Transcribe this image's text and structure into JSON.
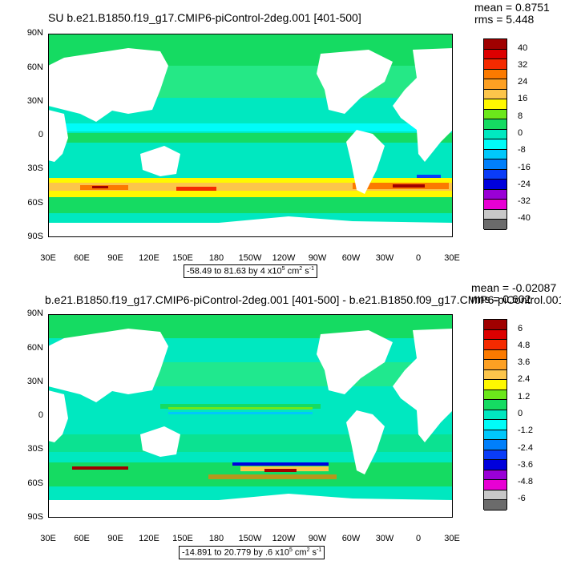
{
  "top": {
    "title": "SU b.e21.B1850.f19_g17.CMIP6-piControl-2deg.001 [401-500]",
    "mean": "mean = 0.8751",
    "rms": "rms = 5.448",
    "range_main": "-58.49 to 81.63 by 4 x10",
    "range_exp": "5",
    "range_unit": "cm",
    "range_unit_exp": "2",
    "range_s": "s",
    "range_s_exp": "-1",
    "colorbar": [
      "40",
      "32",
      "24",
      "16",
      "8",
      "0",
      "-8",
      "-16",
      "-24",
      "-32",
      "-40"
    ],
    "colors": [
      "#a00000",
      "#dd0000",
      "#f52a00",
      "#fb7a00",
      "#fda023",
      "#fcc54b",
      "#fff800",
      "#6be81b",
      "#15db62",
      "#00e8c0",
      "#00fcf8",
      "#00c8fb",
      "#007ffb",
      "#0a3cf8",
      "#0000dc",
      "#9a00d6",
      "#e800d4",
      "#c8c8c8",
      "#6b6b6b"
    ]
  },
  "bottom": {
    "title": "b.e21.B1850.f19_g17.CMIP6-piControl-2deg.001 [401-500] - b.e21.B1850.f09_g17.CMIP6-piControl.001",
    "mean": "mean = -0.02087",
    "rms": "rms = 0.602",
    "range_main": "-14.891 to 20.779 by .6 x10",
    "range_exp": "5",
    "range_unit": "cm",
    "range_unit_exp": "2",
    "range_s": "s",
    "range_s_exp": "-1",
    "colorbar": [
      "6",
      "4.8",
      "3.6",
      "2.4",
      "1.2",
      "0",
      "-1.2",
      "-2.4",
      "-3.6",
      "-4.8",
      "-6"
    ],
    "colors": [
      "#a00000",
      "#dd0000",
      "#f52a00",
      "#fb7a00",
      "#fda023",
      "#fcc54b",
      "#fff800",
      "#6be81b",
      "#15db62",
      "#00e8c0",
      "#00fcf8",
      "#00c8fb",
      "#007ffb",
      "#0a3cf8",
      "#0000dc",
      "#9a00d6",
      "#e800d4",
      "#c8c8c8",
      "#6b6b6b"
    ]
  },
  "axes": {
    "lat_labels": [
      "90N",
      "60N",
      "30N",
      "0",
      "30S",
      "60S",
      "90S"
    ],
    "lon_labels": [
      "30E",
      "60E",
      "90E",
      "120E",
      "150E",
      "180",
      "150W",
      "120W",
      "90W",
      "60W",
      "30W",
      "0",
      "30E"
    ]
  }
}
